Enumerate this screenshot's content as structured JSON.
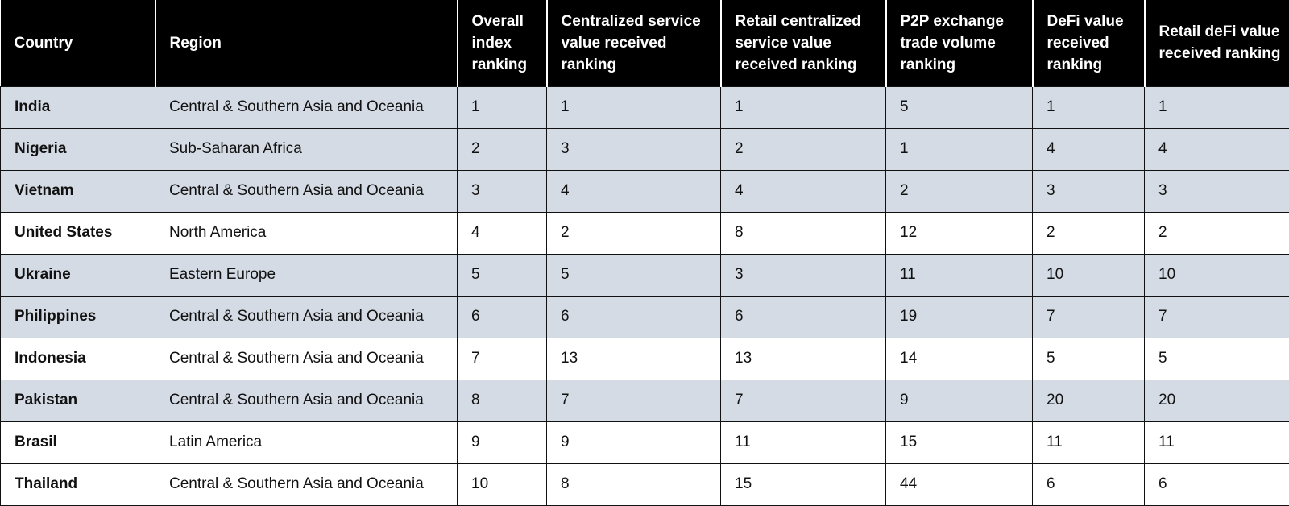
{
  "table": {
    "header": [
      "Country",
      "Region",
      "Overall index ranking",
      "Centralized service value received ranking",
      "Retail centralized service value received ranking",
      "P2P exchange trade volume ranking",
      "DeFi value received ranking",
      "Retail deFi value received ranking"
    ],
    "rows": [
      [
        "India",
        "Central & Southern Asia and Oceania",
        1,
        1,
        1,
        5,
        1,
        1
      ],
      [
        "Nigeria",
        "Sub-Saharan Africa",
        2,
        3,
        2,
        1,
        4,
        4
      ],
      [
        "Vietnam",
        "Central & Southern Asia and Oceania",
        3,
        4,
        4,
        2,
        3,
        3
      ],
      [
        "United States",
        "North America",
        4,
        2,
        8,
        12,
        2,
        2
      ],
      [
        "Ukraine",
        "Eastern Europe",
        5,
        5,
        3,
        11,
        10,
        10
      ],
      [
        "Philippines",
        "Central & Southern Asia and Oceania",
        6,
        6,
        6,
        19,
        7,
        7
      ],
      [
        "Indonesia",
        "Central & Southern Asia and Oceania",
        7,
        13,
        13,
        14,
        5,
        5
      ],
      [
        "Pakistan",
        "Central & Southern Asia and Oceania",
        8,
        7,
        7,
        9,
        20,
        20
      ],
      [
        "Brasil",
        "Latin America",
        9,
        9,
        11,
        15,
        11,
        11
      ],
      [
        "Thailand",
        "Central & Southern Asia and Oceania",
        10,
        8,
        15,
        44,
        6,
        6
      ]
    ]
  }
}
